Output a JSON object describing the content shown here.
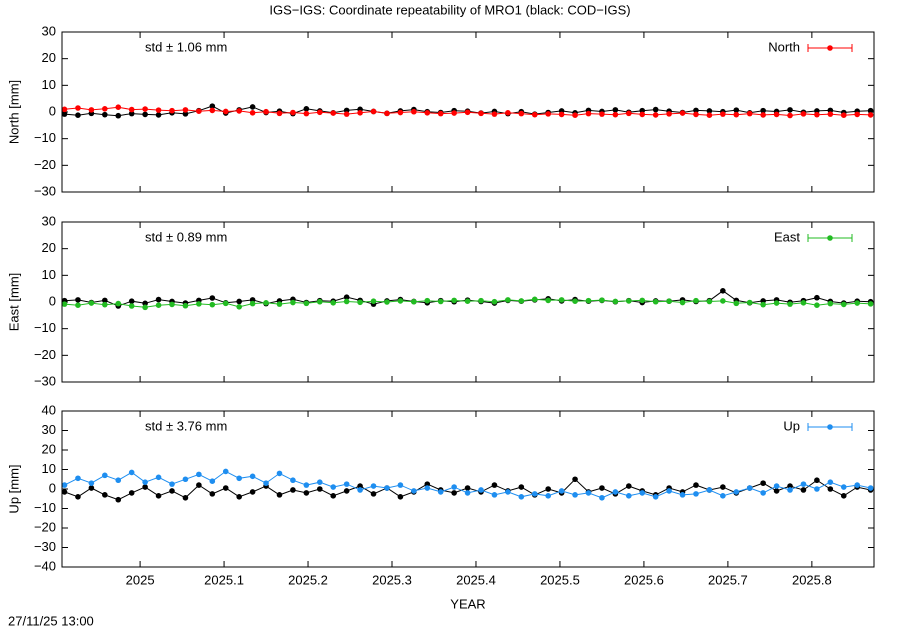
{
  "title": "IGS−IGS: Coordinate repeatability of MRO1 (black: COD−IGS)",
  "timestamp": "27/11/25 13:00",
  "chart_data": [
    {
      "type": "line",
      "ylabel": "North [mm]",
      "annotation": "std ± 1.06 mm",
      "legend": "top-right",
      "x": [
        2024.91,
        2024.926,
        2024.942,
        2024.958,
        2024.974,
        2024.99,
        2025.006,
        2025.022,
        2025.038,
        2025.054,
        2025.07,
        2025.086,
        2025.102,
        2025.118,
        2025.134,
        2025.15,
        2025.166,
        2025.182,
        2025.198,
        2025.214,
        2025.23,
        2025.246,
        2025.262,
        2025.278,
        2025.294,
        2025.31,
        2025.326,
        2025.342,
        2025.358,
        2025.374,
        2025.39,
        2025.406,
        2025.422,
        2025.438,
        2025.454,
        2025.47,
        2025.486,
        2025.502,
        2025.518,
        2025.534,
        2025.55,
        2025.566,
        2025.582,
        2025.598,
        2025.614,
        2025.63,
        2025.646,
        2025.662,
        2025.678,
        2025.694,
        2025.71,
        2025.726,
        2025.742,
        2025.758,
        2025.774,
        2025.79,
        2025.806,
        2025.822,
        2025.838,
        2025.854,
        2025.87
      ],
      "xlim": [
        2024.907,
        2025.874
      ],
      "ylim": [
        -30,
        30
      ],
      "yticks": [
        {
          "value": -30,
          "label": "−30"
        },
        {
          "value": -20,
          "label": "−20"
        },
        {
          "value": -10,
          "label": "−10"
        },
        0,
        10,
        20,
        30
      ],
      "series": [
        {
          "color": "#000000",
          "values": [
            -0.8,
            -1.2,
            -0.5,
            -1.0,
            -1.4,
            -0.6,
            -0.9,
            -1.1,
            -0.3,
            -0.7,
            0.5,
            2.2,
            -0.4,
            0.8,
            1.9,
            -0.2,
            0.3,
            -0.6,
            1.2,
            0.4,
            -0.3,
            0.6,
            1.0,
            0.2,
            -0.5,
            0.4,
            0.9,
            0.1,
            -0.2,
            0.5,
            0.3,
            -0.4,
            0.2,
            -0.6,
            0.1,
            -0.8,
            -0.2,
            0.4,
            -0.3,
            0.6,
            0.2,
            0.8,
            -0.1,
            0.5,
            0.9,
            0.3,
            -0.2,
            0.6,
            0.4,
            0.1,
            0.7,
            -0.3,
            0.5,
            0.2,
            0.8,
            -0.1,
            0.4,
            0.6,
            -0.2,
            0.3,
            0.5
          ]
        },
        {
          "name": "North",
          "color": "#ff0000",
          "values": [
            1.0,
            1.5,
            0.8,
            1.2,
            1.8,
            0.9,
            1.1,
            0.7,
            0.5,
            0.8,
            0.3,
            0.6,
            0.2,
            0.4,
            -0.3,
            0.1,
            -0.5,
            -0.2,
            -0.6,
            -0.1,
            -0.4,
            -0.8,
            -0.3,
            0.2,
            -0.5,
            -0.2,
            0.1,
            -0.3,
            -0.6,
            -0.4,
            -0.1,
            -0.5,
            -0.8,
            -0.3,
            -0.6,
            -1.0,
            -0.7,
            -0.9,
            -1.2,
            -0.6,
            -0.8,
            -1.0,
            -0.5,
            -0.9,
            -1.1,
            -0.7,
            -0.4,
            -0.9,
            -1.2,
            -0.8,
            -1.0,
            -0.6,
            -1.1,
            -0.9,
            -1.3,
            -0.7,
            -1.0,
            -0.8,
            -1.2,
            -0.9,
            -1.1
          ]
        }
      ]
    },
    {
      "type": "line",
      "ylabel": "East [mm]",
      "annotation": "std ± 0.89 mm",
      "legend": "top-right",
      "x": [
        2024.91,
        2024.926,
        2024.942,
        2024.958,
        2024.974,
        2024.99,
        2025.006,
        2025.022,
        2025.038,
        2025.054,
        2025.07,
        2025.086,
        2025.102,
        2025.118,
        2025.134,
        2025.15,
        2025.166,
        2025.182,
        2025.198,
        2025.214,
        2025.23,
        2025.246,
        2025.262,
        2025.278,
        2025.294,
        2025.31,
        2025.326,
        2025.342,
        2025.358,
        2025.374,
        2025.39,
        2025.406,
        2025.422,
        2025.438,
        2025.454,
        2025.47,
        2025.486,
        2025.502,
        2025.518,
        2025.534,
        2025.55,
        2025.566,
        2025.582,
        2025.598,
        2025.614,
        2025.63,
        2025.646,
        2025.662,
        2025.678,
        2025.694,
        2025.71,
        2025.726,
        2025.742,
        2025.758,
        2025.774,
        2025.79,
        2025.806,
        2025.822,
        2025.838,
        2025.854,
        2025.87
      ],
      "xlim": [
        2024.907,
        2025.874
      ],
      "ylim": [
        -30,
        30
      ],
      "yticks": [
        {
          "value": -30,
          "label": "−30"
        },
        {
          "value": -20,
          "label": "−20"
        },
        {
          "value": -10,
          "label": "−10"
        },
        0,
        10,
        20,
        30
      ],
      "series": [
        {
          "color": "#000000",
          "values": [
            0.5,
            0.8,
            -0.2,
            0.6,
            -1.5,
            0.3,
            -0.5,
            0.9,
            0.2,
            -0.4,
            0.6,
            1.5,
            -0.3,
            0.2,
            0.8,
            -0.6,
            0.4,
            1.0,
            -0.2,
            0.5,
            0.3,
            1.8,
            0.6,
            -0.8,
            0.4,
            0.9,
            0.2,
            -0.3,
            0.5,
            0.1,
            0.7,
            0.2,
            -0.4,
            0.6,
            0.3,
            0.8,
            1.2,
            0.4,
            0.9,
            0.3,
            0.6,
            0.1,
            0.5,
            -0.2,
            0.4,
            0.3,
            0.8,
            0.2,
            0.5,
            4.2,
            0.6,
            -0.3,
            0.4,
            0.8,
            -0.1,
            0.5,
            1.6,
            0.2,
            -0.4,
            0.3,
            0.1
          ]
        },
        {
          "name": "East",
          "color": "#22bb22",
          "values": [
            -0.8,
            -1.2,
            -0.4,
            -1.0,
            -0.6,
            -1.5,
            -2.0,
            -1.2,
            -0.9,
            -1.4,
            -0.7,
            -1.0,
            -0.5,
            -1.8,
            -0.6,
            -0.3,
            -0.8,
            -0.2,
            -0.5,
            0.1,
            -0.3,
            0.2,
            -0.1,
            0.3,
            0.0,
            0.4,
            0.1,
            0.5,
            0.2,
            0.6,
            0.3,
            0.5,
            0.1,
            0.8,
            0.4,
            1.0,
            0.6,
            0.8,
            0.3,
            0.5,
            0.7,
            0.2,
            0.4,
            0.6,
            0.1,
            0.3,
            -0.2,
            0.5,
            0.2,
            0.4,
            -0.5,
            -0.2,
            -1.0,
            -0.4,
            -0.8,
            -0.3,
            -1.2,
            -0.6,
            -0.9,
            -0.4,
            -0.7
          ]
        }
      ]
    },
    {
      "type": "line",
      "ylabel": "Up [mm]",
      "xlabel": "YEAR",
      "annotation": "std ± 3.76 mm",
      "legend": "top-right",
      "x": [
        2024.91,
        2024.926,
        2024.942,
        2024.958,
        2024.974,
        2024.99,
        2025.006,
        2025.022,
        2025.038,
        2025.054,
        2025.07,
        2025.086,
        2025.102,
        2025.118,
        2025.134,
        2025.15,
        2025.166,
        2025.182,
        2025.198,
        2025.214,
        2025.23,
        2025.246,
        2025.262,
        2025.278,
        2025.294,
        2025.31,
        2025.326,
        2025.342,
        2025.358,
        2025.374,
        2025.39,
        2025.406,
        2025.422,
        2025.438,
        2025.454,
        2025.47,
        2025.486,
        2025.502,
        2025.518,
        2025.534,
        2025.55,
        2025.566,
        2025.582,
        2025.598,
        2025.614,
        2025.63,
        2025.646,
        2025.662,
        2025.678,
        2025.694,
        2025.71,
        2025.726,
        2025.742,
        2025.758,
        2025.774,
        2025.79,
        2025.806,
        2025.822,
        2025.838,
        2025.854,
        2025.87
      ],
      "xlim": [
        2024.907,
        2025.874
      ],
      "ylim": [
        -40,
        40
      ],
      "xticks": [
        2025,
        2025.1,
        2025.2,
        2025.3,
        2025.4,
        2025.5,
        2025.6,
        2025.7,
        2025.8
      ],
      "yticks": [
        {
          "value": -40,
          "label": "−40"
        },
        {
          "value": -30,
          "label": "−30"
        },
        {
          "value": -20,
          "label": "−20"
        },
        {
          "value": -10,
          "label": "−10"
        },
        0,
        10,
        20,
        30,
        40
      ],
      "series": [
        {
          "color": "#000000",
          "values": [
            -1.5,
            -4.0,
            0.5,
            -3.0,
            -5.5,
            -2.0,
            1.0,
            -3.5,
            -1.0,
            -4.5,
            2.0,
            -2.5,
            0.5,
            -4.0,
            -1.5,
            1.5,
            -3.0,
            -0.5,
            -2.0,
            0.0,
            -3.5,
            -1.0,
            1.5,
            -2.5,
            0.5,
            -4.0,
            -1.5,
            2.5,
            -0.5,
            -2.0,
            0.5,
            -1.5,
            2.0,
            -1.0,
            1.0,
            -3.0,
            0.0,
            -2.0,
            5.0,
            -1.5,
            0.5,
            -2.5,
            1.5,
            -1.0,
            -3.0,
            0.5,
            -1.5,
            2.0,
            -0.5,
            1.0,
            -2.0,
            0.5,
            3.0,
            -1.0,
            1.5,
            -0.5,
            4.5,
            0.0,
            -3.5,
            1.0,
            -0.5
          ]
        },
        {
          "name": "Up",
          "color": "#1e8ef0",
          "values": [
            2.0,
            5.5,
            3.0,
            7.0,
            4.5,
            8.5,
            3.5,
            6.0,
            2.5,
            5.0,
            7.5,
            4.0,
            9.0,
            5.5,
            6.5,
            3.0,
            8.0,
            4.5,
            2.0,
            3.5,
            1.0,
            2.5,
            -0.5,
            1.5,
            0.5,
            2.0,
            -1.0,
            0.5,
            -1.5,
            1.0,
            -2.0,
            -0.5,
            -3.0,
            -1.5,
            -4.0,
            -2.5,
            -3.5,
            -1.0,
            -3.0,
            -2.0,
            -4.5,
            -1.5,
            -3.5,
            -2.0,
            -4.0,
            -1.0,
            -3.0,
            -2.5,
            -0.5,
            -3.5,
            -1.5,
            0.5,
            -2.0,
            1.5,
            -0.5,
            2.5,
            0.0,
            3.5,
            1.0,
            2.0,
            0.5
          ]
        }
      ]
    }
  ]
}
